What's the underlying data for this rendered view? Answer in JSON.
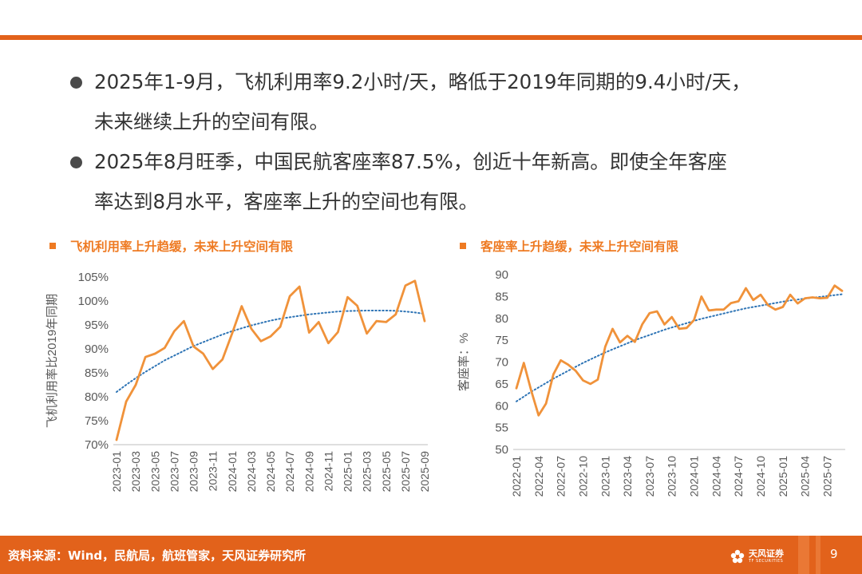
{
  "bullets": [
    {
      "line1": "2025年1-9月，飞机利用率9.2小时/天，略低于2019年同期的9.4小时/天，",
      "line2": "未来继续上升的空间有限。"
    },
    {
      "line1": "2025年8月旺季，中国民航客座率87.5%，创近十年新高。即使全年客座",
      "line2": "率达到8月水平，客座率上升的空间也有限。"
    }
  ],
  "chart_data": [
    {
      "type": "line",
      "title": "飞机利用率上升趋缓，未来上升空间有限",
      "xlabel": "",
      "ylabel": "飞机利用率比2019年同期",
      "ylim": [
        70,
        105
      ],
      "yticks": [
        70,
        75,
        80,
        85,
        90,
        95,
        100,
        105
      ],
      "ytick_labels": [
        "70%",
        "75%",
        "80%",
        "85%",
        "90%",
        "95%",
        "100%",
        "105%"
      ],
      "x": [
        "2023-01",
        "2023-02",
        "2023-03",
        "2023-04",
        "2023-05",
        "2023-06",
        "2023-07",
        "2023-08",
        "2023-09",
        "2023-10",
        "2023-11",
        "2023-12",
        "2024-01",
        "2024-02",
        "2024-03",
        "2024-04",
        "2024-05",
        "2024-06",
        "2024-07",
        "2024-08",
        "2024-09",
        "2024-10",
        "2024-11",
        "2024-12",
        "2025-01",
        "2025-02",
        "2025-03",
        "2025-04",
        "2025-05",
        "2025-06",
        "2025-07",
        "2025-08",
        "2025-09"
      ],
      "xtick_labels": [
        "2023-01",
        "2023-03",
        "2023-05",
        "2023-07",
        "2023-09",
        "2023-11",
        "2024-01",
        "2024-03",
        "2024-05",
        "2024-07",
        "2024-09",
        "2024-11",
        "2025-01",
        "2025-03",
        "2025-05",
        "2025-07",
        "2025-09"
      ],
      "series": [
        {
          "name": "飞机利用率比2019年同期",
          "color": "#f0923a",
          "values": [
            71.0,
            79.0,
            82.5,
            88.3,
            89.0,
            90.2,
            93.7,
            95.8,
            90.5,
            89.0,
            85.8,
            87.8,
            93.2,
            98.9,
            94.2,
            91.6,
            92.6,
            94.6,
            101.0,
            103.0,
            93.4,
            95.6,
            91.2,
            93.5,
            100.8,
            99.0,
            93.2,
            95.8,
            95.6,
            97.2,
            103.2,
            104.2,
            95.8
          ]
        },
        {
          "name": "趋势线",
          "color": "#2e74b5",
          "dashed": true,
          "values": [
            81.0,
            82.5,
            83.9,
            85.2,
            86.4,
            87.6,
            88.6,
            89.6,
            90.6,
            91.4,
            92.2,
            93.0,
            93.7,
            94.3,
            94.9,
            95.4,
            95.9,
            96.3,
            96.6,
            96.9,
            97.2,
            97.4,
            97.6,
            97.8,
            97.9,
            97.95,
            98.0,
            98.0,
            98.0,
            97.95,
            97.8,
            97.6,
            97.3
          ]
        }
      ]
    },
    {
      "type": "line",
      "title": "客座率上升趋缓，未来上升空间有限",
      "xlabel": "",
      "ylabel": "客座率：%",
      "ylim": [
        50,
        90
      ],
      "yticks": [
        50,
        55,
        60,
        65,
        70,
        75,
        80,
        85,
        90
      ],
      "ytick_labels": [
        "50",
        "55",
        "60",
        "65",
        "70",
        "75",
        "80",
        "85",
        "90"
      ],
      "x": [
        "2022-01",
        "2022-02",
        "2022-03",
        "2022-04",
        "2022-05",
        "2022-06",
        "2022-07",
        "2022-08",
        "2022-09",
        "2022-10",
        "2022-11",
        "2022-12",
        "2023-01",
        "2023-02",
        "2023-03",
        "2023-04",
        "2023-05",
        "2023-06",
        "2023-07",
        "2023-08",
        "2023-09",
        "2023-10",
        "2023-11",
        "2023-12",
        "2024-01",
        "2024-02",
        "2024-03",
        "2024-04",
        "2024-05",
        "2024-06",
        "2024-07",
        "2024-08",
        "2024-09",
        "2024-10",
        "2024-11",
        "2024-12",
        "2025-01",
        "2025-02",
        "2025-03",
        "2025-04",
        "2025-05",
        "2025-06",
        "2025-07",
        "2025-08",
        "2025-09"
      ],
      "xtick_labels": [
        "2022-01",
        "2022-04",
        "2022-07",
        "2022-10",
        "2023-01",
        "2023-04",
        "2023-07",
        "2023-10",
        "2024-01",
        "2024-04",
        "2024-07",
        "2024-10",
        "2025-01",
        "2025-04",
        "2025-07"
      ],
      "series": [
        {
          "name": "客座率",
          "color": "#f0923a",
          "values": [
            64.0,
            69.8,
            63.5,
            57.8,
            60.5,
            67.2,
            70.4,
            69.4,
            68.0,
            65.8,
            65.0,
            66.0,
            73.5,
            77.6,
            74.5,
            76.0,
            74.6,
            78.6,
            81.2,
            81.6,
            78.6,
            80.3,
            77.6,
            77.8,
            79.6,
            85.0,
            81.8,
            82.0,
            82.0,
            83.5,
            83.9,
            86.9,
            84.2,
            85.4,
            83.0,
            82.0,
            82.6,
            85.4,
            83.4,
            84.6,
            84.8,
            84.6,
            84.7,
            87.5,
            86.3
          ]
        },
        {
          "name": "趋势线",
          "color": "#2e74b5",
          "dashed": true,
          "values": [
            61.0,
            62.1,
            63.2,
            64.2,
            65.2,
            66.2,
            67.1,
            68.0,
            68.9,
            69.8,
            70.6,
            71.4,
            72.2,
            72.9,
            73.6,
            74.3,
            75.0,
            75.6,
            76.2,
            76.8,
            77.4,
            77.9,
            78.4,
            78.9,
            79.4,
            79.9,
            80.3,
            80.7,
            81.1,
            81.5,
            81.9,
            82.3,
            82.6,
            82.9,
            83.2,
            83.5,
            83.8,
            84.1,
            84.3,
            84.5,
            84.7,
            84.9,
            85.1,
            85.3,
            85.5
          ]
        }
      ]
    }
  ],
  "footer": {
    "source": "资料来源：Wind，民航局，航班管家，天风证券研究所",
    "brand_cn": "天风证券",
    "brand_en": "TF SECURITIES",
    "page_number": "9"
  },
  "colors": {
    "accent": "#e2621b",
    "line": "#f0923a",
    "trend": "#2e74b5"
  }
}
